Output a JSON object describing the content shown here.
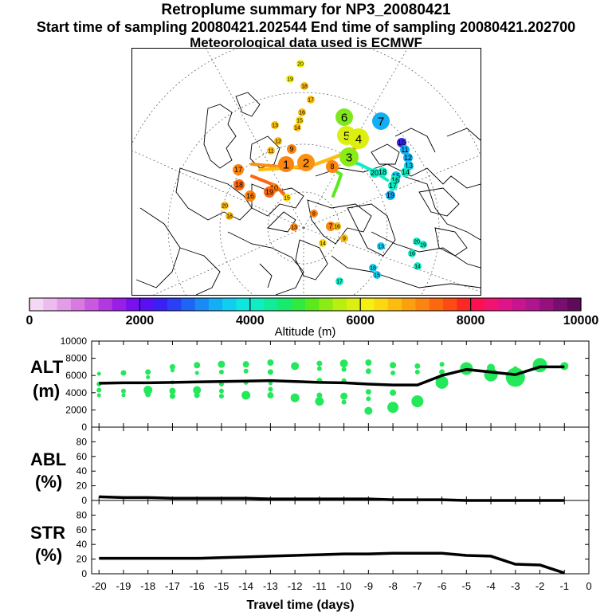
{
  "title": {
    "line1": "Retroplume summary for NP3_20080421",
    "line2": "Start time of sampling 20080421.202544     End time of sampling 20080421.202700",
    "line3": "Meteorological data used is ECMWF"
  },
  "colors": {
    "point": "#22e85a",
    "line": "#000000",
    "colorbar": [
      "#f5d8f5",
      "#ecbcee",
      "#e39ce8",
      "#d87ae2",
      "#c95ae0",
      "#b238e0",
      "#9a1ee8",
      "#7a10f0",
      "#5a10f5",
      "#3a20f5",
      "#2a40f5",
      "#1e64f5",
      "#1a8af5",
      "#14aef5",
      "#10cef0",
      "#10e6e0",
      "#10ecc4",
      "#10ec9a",
      "#18ea6e",
      "#30ea40",
      "#5aea1c",
      "#8aec14",
      "#b8ee10",
      "#dcf010",
      "#f4f010",
      "#fcd810",
      "#fcbc10",
      "#fca010",
      "#fc8410",
      "#fc6810",
      "#fc4c14",
      "#fc2824",
      "#fc1050",
      "#f01470",
      "#e0148a",
      "#c8148e",
      "#b0148e",
      "#96107e",
      "#7a0e6e",
      "#600a5c"
    ]
  },
  "map": {
    "markers": [
      {
        "label": "6",
        "color": "#7ee81c",
        "r": 11
      },
      {
        "label": "7",
        "color": "#14aef5",
        "r": 11
      },
      {
        "label": "5",
        "color": "#dcf010",
        "r": 12
      },
      {
        "label": "4",
        "color": "#dcf010",
        "r": 13
      },
      {
        "label": "3",
        "color": "#8aec14",
        "r": 12
      },
      {
        "label": "2",
        "color": "#fc9010",
        "r": 11
      },
      {
        "label": "1",
        "color": "#fc8410",
        "r": 10
      },
      {
        "label": "8",
        "color": "#fc8410",
        "r": 8
      },
      {
        "label": "10",
        "color": "#3a20f5",
        "r": 6
      },
      {
        "label": "11",
        "color": "#14aef5",
        "r": 6
      },
      {
        "label": "12",
        "color": "#14aef5",
        "r": 6
      },
      {
        "label": "13",
        "color": "#10cef0",
        "r": 6
      },
      {
        "label": "14",
        "color": "#10ecc4",
        "r": 6
      },
      {
        "label": "15",
        "color": "#10cef0",
        "r": 6
      },
      {
        "label": "16",
        "color": "#10ecc4",
        "r": 6
      },
      {
        "label": "17",
        "color": "#10ecc4",
        "r": 6
      },
      {
        "label": "18",
        "color": "#10ecc4",
        "r": 6
      },
      {
        "label": "19",
        "color": "#14aef5",
        "r": 6
      },
      {
        "label": "20",
        "color": "#10ecc4",
        "r": 6
      },
      {
        "label": "20",
        "color": "#f4f010",
        "r": 5
      },
      {
        "label": "19",
        "color": "#f4f010",
        "r": 5
      },
      {
        "label": "18",
        "color": "#fcbc10",
        "r": 5
      },
      {
        "label": "17",
        "color": "#fcbc10",
        "r": 5
      },
      {
        "label": "16",
        "color": "#fcbc10",
        "r": 5
      },
      {
        "label": "15",
        "color": "#fcd810",
        "r": 5
      },
      {
        "label": "14",
        "color": "#fcbc10",
        "r": 5
      },
      {
        "label": "13",
        "color": "#fcbc10",
        "r": 5
      },
      {
        "label": "12",
        "color": "#fcbc10",
        "r": 5
      },
      {
        "label": "11",
        "color": "#fcbc10",
        "r": 5
      },
      {
        "label": "10",
        "color": "#fc8410",
        "r": 6
      },
      {
        "label": "9",
        "color": "#fc8410",
        "r": 6
      },
      {
        "label": "16",
        "color": "#fc8410",
        "r": 7
      },
      {
        "label": "17",
        "color": "#fc8410",
        "r": 7
      },
      {
        "label": "18",
        "color": "#fc6810",
        "r": 7
      },
      {
        "label": "19",
        "color": "#fc6810",
        "r": 7
      },
      {
        "label": "20",
        "color": "#fcbc10",
        "r": 5
      },
      {
        "label": "18",
        "color": "#fcbc10",
        "r": 5
      },
      {
        "label": "15",
        "color": "#fcd810",
        "r": 5
      },
      {
        "label": "13",
        "color": "#fc8410",
        "r": 5
      },
      {
        "label": "7",
        "color": "#fc8410",
        "r": 6
      },
      {
        "label": "8",
        "color": "#fc8410",
        "r": 5
      },
      {
        "label": "9",
        "color": "#fcbc10",
        "r": 5
      },
      {
        "label": "16",
        "color": "#fcbc10",
        "r": 5
      },
      {
        "label": "14",
        "color": "#fcd810",
        "r": 5
      },
      {
        "label": "17",
        "color": "#10ecc4",
        "r": 5
      },
      {
        "label": "18",
        "color": "#10cef0",
        "r": 5
      },
      {
        "label": "19",
        "color": "#10ecc4",
        "r": 5
      },
      {
        "label": "20",
        "color": "#10ecc4",
        "r": 5
      },
      {
        "label": "16",
        "color": "#10ecc4",
        "r": 5
      },
      {
        "label": "14",
        "color": "#10ecc4",
        "r": 5
      },
      {
        "label": "15",
        "color": "#10cef0",
        "r": 5
      },
      {
        "label": "13",
        "color": "#10cef0",
        "r": 5
      }
    ]
  },
  "colorbar": {
    "ticks": [
      "0",
      "2000",
      "4000",
      "6000",
      "8000",
      "10000"
    ],
    "label": "Altitude (m)"
  },
  "chart_data": [
    {
      "type": "line",
      "panel": "ALT",
      "ylabel_top": "ALT",
      "ylabel_unit": "(m)",
      "ylim": [
        0,
        10000
      ],
      "yticks": [
        "10000",
        "8000",
        "6000",
        "4000",
        "2000",
        "0"
      ],
      "ytick_values": [
        10000,
        8000,
        6000,
        4000,
        2000,
        0
      ],
      "xlim": [
        -20.3,
        0
      ],
      "x": [
        -20,
        -19,
        -18,
        -17,
        -16,
        -15,
        -14,
        -13,
        -12,
        -11,
        -10,
        -9,
        -8,
        -7,
        -6,
        -5,
        -4,
        -3,
        -2,
        -1
      ],
      "values": [
        5100,
        5150,
        5150,
        5200,
        5250,
        5300,
        5350,
        5400,
        5300,
        5200,
        5150,
        5000,
        4900,
        4900,
        6000,
        6700,
        6400,
        6100,
        7000,
        7000
      ],
      "points": [
        [
          -20,
          6200,
          2.5
        ],
        [
          -20,
          5000,
          3
        ],
        [
          -20,
          4300,
          3
        ],
        [
          -20,
          3700,
          2.5
        ],
        [
          -19,
          6300,
          3.5
        ],
        [
          -19,
          4200,
          3
        ],
        [
          -19,
          3700,
          2.5
        ],
        [
          -18,
          6400,
          3.5
        ],
        [
          -18,
          5800,
          2.5
        ],
        [
          -18,
          4300,
          5.5
        ],
        [
          -18,
          3800,
          3.5
        ],
        [
          -17,
          7000,
          3.5
        ],
        [
          -17,
          6600,
          2.5
        ],
        [
          -17,
          5200,
          2.5
        ],
        [
          -17,
          4200,
          4
        ],
        [
          -17,
          3600,
          3.5
        ],
        [
          -16,
          7200,
          4
        ],
        [
          -16,
          6300,
          2.5
        ],
        [
          -16,
          4300,
          5
        ],
        [
          -16,
          3700,
          3.5
        ],
        [
          -15,
          7300,
          4.5
        ],
        [
          -15,
          6400,
          3
        ],
        [
          -15,
          5000,
          3
        ],
        [
          -15,
          4200,
          3
        ],
        [
          -15,
          3600,
          3
        ],
        [
          -14,
          7300,
          4
        ],
        [
          -14,
          6500,
          3
        ],
        [
          -14,
          5200,
          3
        ],
        [
          -14,
          3700,
          5.5
        ],
        [
          -13,
          7500,
          4
        ],
        [
          -13,
          6400,
          3.5
        ],
        [
          -13,
          5100,
          2.5
        ],
        [
          -13,
          4400,
          3
        ],
        [
          -13,
          3700,
          4
        ],
        [
          -12,
          7100,
          5
        ],
        [
          -12,
          3400,
          5.5
        ],
        [
          -11,
          7400,
          3.5
        ],
        [
          -11,
          6800,
          3
        ],
        [
          -11,
          5400,
          3.5
        ],
        [
          -11,
          3700,
          3.5
        ],
        [
          -11,
          3000,
          5.5
        ],
        [
          -10,
          7400,
          5
        ],
        [
          -10,
          6700,
          3
        ],
        [
          -10,
          5400,
          3
        ],
        [
          -10,
          3600,
          4.5
        ],
        [
          -10,
          2900,
          3
        ],
        [
          -9,
          7500,
          4
        ],
        [
          -9,
          6500,
          3.5
        ],
        [
          -9,
          4100,
          3.5
        ],
        [
          -9,
          3300,
          3
        ],
        [
          -9,
          1900,
          5
        ],
        [
          -8,
          7200,
          4
        ],
        [
          -8,
          6300,
          3
        ],
        [
          -8,
          4000,
          4
        ],
        [
          -8,
          2300,
          7
        ],
        [
          -7,
          7100,
          3.5
        ],
        [
          -7,
          6400,
          3
        ],
        [
          -7,
          3000,
          7.5
        ],
        [
          -6,
          7300,
          3
        ],
        [
          -6,
          6400,
          3.5
        ],
        [
          -6,
          5200,
          8
        ],
        [
          -5,
          6800,
          8
        ],
        [
          -4,
          6900,
          5
        ],
        [
          -4,
          6100,
          8.5
        ],
        [
          -3,
          6800,
          3
        ],
        [
          -3,
          5800,
          12
        ],
        [
          -2,
          7200,
          9
        ],
        [
          -1,
          7100,
          5
        ]
      ]
    },
    {
      "type": "line",
      "panel": "ABL",
      "ylabel_top": "ABL",
      "ylabel_unit": "(%)",
      "ylim": [
        0,
        100
      ],
      "yticks": [
        "80",
        "60",
        "40",
        "20",
        "0"
      ],
      "ytick_values": [
        80,
        60,
        40,
        20,
        0
      ],
      "xlim": [
        -20.3,
        0
      ],
      "x": [
        -20,
        -19,
        -18,
        -17,
        -16,
        -15,
        -14,
        -13,
        -12,
        -11,
        -10,
        -9,
        -8,
        -7,
        -6,
        -5,
        -4,
        -3,
        -2,
        -1
      ],
      "values": [
        5,
        4,
        4,
        3,
        3,
        3,
        3,
        2,
        2,
        2,
        2,
        2,
        1,
        1,
        1,
        0,
        0,
        0,
        0,
        0
      ]
    },
    {
      "type": "line",
      "panel": "STR",
      "ylabel_top": "STR",
      "ylabel_unit": "(%)",
      "ylim": [
        0,
        100
      ],
      "yticks": [
        "80",
        "60",
        "40",
        "20",
        "0"
      ],
      "ytick_values": [
        80,
        60,
        40,
        20,
        0
      ],
      "xlim": [
        -20.3,
        0
      ],
      "x": [
        -20,
        -19,
        -18,
        -17,
        -16,
        -15,
        -14,
        -13,
        -12,
        -11,
        -10,
        -9,
        -8,
        -7,
        -6,
        -5,
        -4,
        -3,
        -2,
        -1
      ],
      "values": [
        21,
        21,
        21,
        21,
        21,
        22,
        23,
        24,
        25,
        26,
        27,
        27,
        28,
        28,
        28,
        25,
        24,
        13,
        12,
        1
      ],
      "xticks": [
        "-20",
        "-19",
        "-18",
        "-17",
        "-16",
        "-15",
        "-14",
        "-13",
        "-12",
        "-11",
        "-10",
        "-9",
        "-8",
        "-7",
        "-6",
        "-5",
        "-4",
        "-3",
        "-2",
        "-1",
        "0"
      ],
      "xtick_values": [
        -20,
        -19,
        -18,
        -17,
        -16,
        -15,
        -14,
        -13,
        -12,
        -11,
        -10,
        -9,
        -8,
        -7,
        -6,
        -5,
        -4,
        -3,
        -2,
        -1,
        0
      ],
      "xlabel": "Travel time (days)"
    }
  ]
}
